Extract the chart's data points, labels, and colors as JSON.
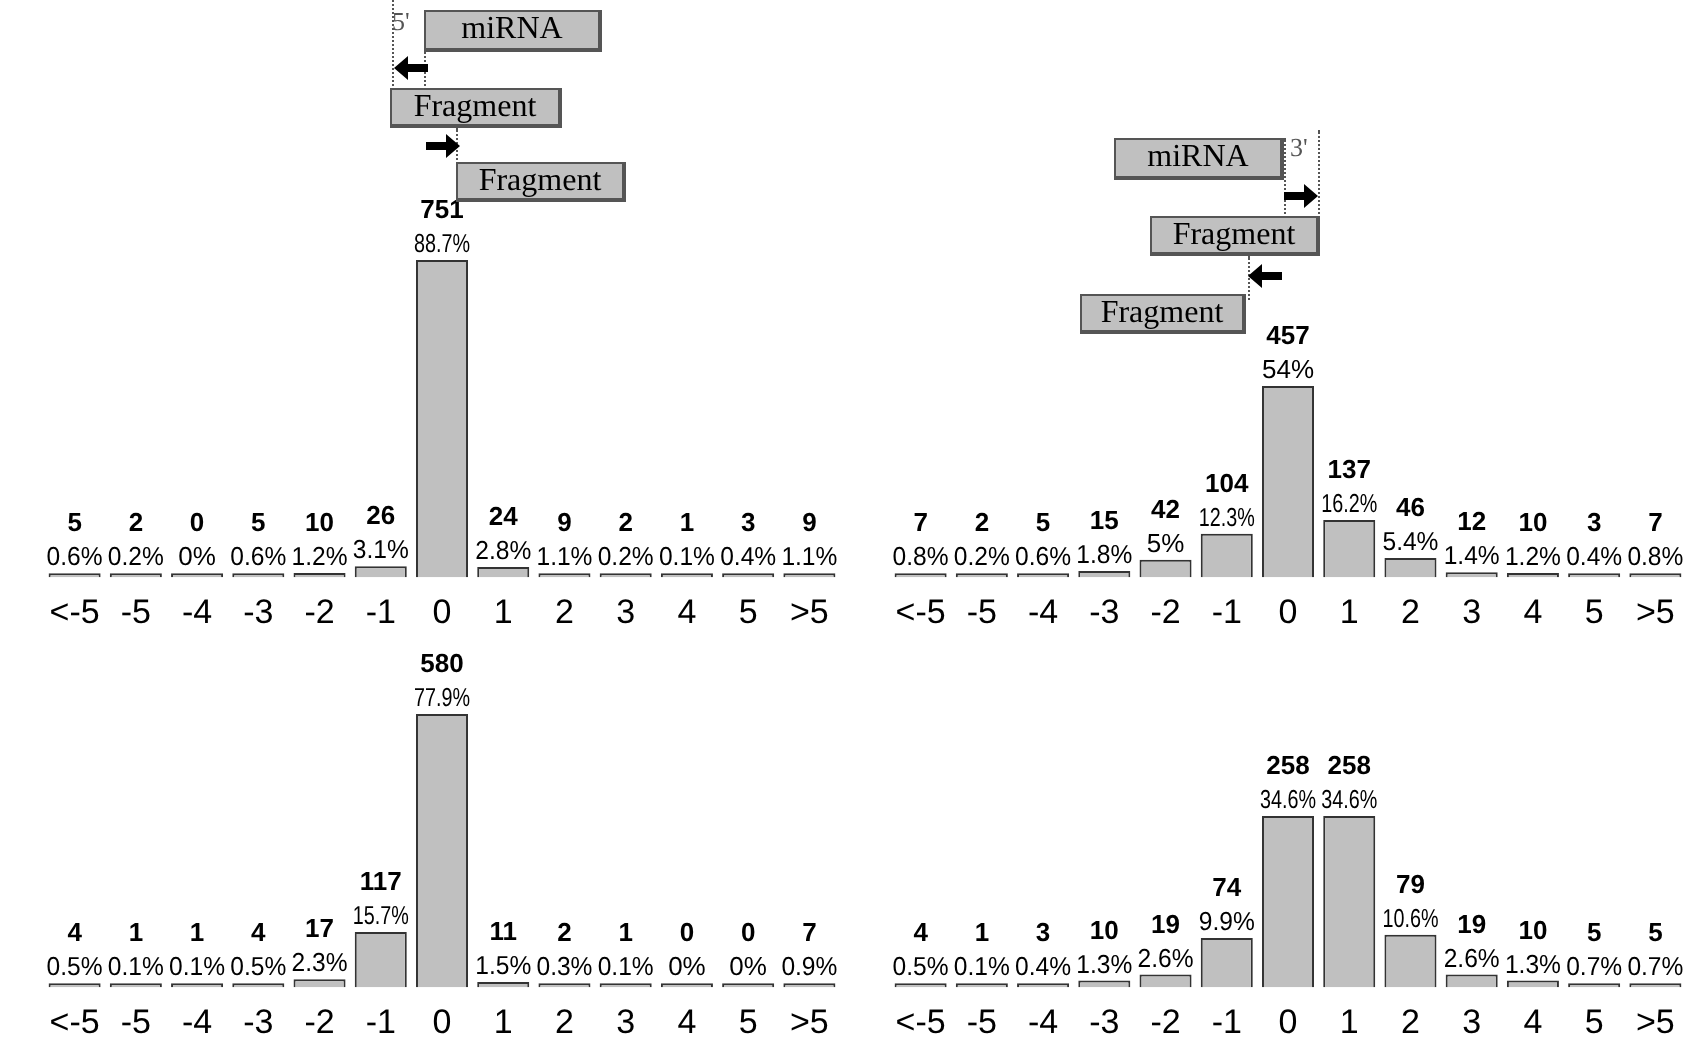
{
  "chart_data": [
    {
      "type": "bar",
      "categories": [
        "<-5",
        "-5",
        "-4",
        "-3",
        "-2",
        "-1",
        "0",
        "1",
        "2",
        "3",
        "4",
        "5",
        ">5"
      ],
      "color": "#c0c0c0",
      "tick_labels": "x",
      "grid": false,
      "legend": false,
      "values": [
        5,
        2,
        0,
        5,
        10,
        26,
        751,
        24,
        9,
        2,
        1,
        3,
        9
      ],
      "value_labels": [
        "5\n0.6%",
        "2\n0.2%",
        "0\n0%",
        "5\n0.6%",
        "10\n1.2%",
        "26\n3.1%",
        "751\n88.7%",
        "24\n2.8%",
        "9\n1.1%",
        "2\n0.2%",
        "1\n0.1%",
        "3\n0.4%",
        "9\n1.1%"
      ],
      "annotations": [
        "5'",
        "miRNA",
        "Fragment",
        "Fragment"
      ]
    },
    {
      "type": "bar",
      "categories": [
        "<-5",
        "-5",
        "-4",
        "-3",
        "-2",
        "-1",
        "0",
        "1",
        "2",
        "3",
        "4",
        "5",
        ">5"
      ],
      "color": "#c0c0c0",
      "tick_labels": "x",
      "grid": false,
      "legend": false,
      "values": [
        7,
        2,
        5,
        15,
        42,
        104,
        457,
        137,
        46,
        12,
        10,
        3,
        7
      ],
      "value_labels": [
        "7\n0.8%",
        "2\n0.2%",
        "5\n0.6%",
        "15\n1.8%",
        "42\n5%",
        "104\n12.3%",
        "457\n54%",
        "137\n16.2%",
        "46\n5.4%",
        "12\n1.4%",
        "10\n1.2%",
        "3\n0.4%",
        "7\n0.8%"
      ],
      "annotations": [
        "miRNA",
        "3'",
        "Fragment",
        "Fragment"
      ]
    },
    {
      "type": "bar",
      "categories": [
        "<-5",
        "-5",
        "-4",
        "-3",
        "-2",
        "-1",
        "0",
        "1",
        "2",
        "3",
        "4",
        "5",
        ">5"
      ],
      "color": "#c0c0c0",
      "tick_labels": "x",
      "grid": false,
      "legend": false,
      "values": [
        4,
        1,
        1,
        4,
        17,
        117,
        580,
        11,
        2,
        1,
        0,
        0,
        7
      ],
      "value_labels": [
        "4\n0.5%",
        "1\n0.1%",
        "1\n0.1%",
        "4\n0.5%",
        "17\n2.3%",
        "117\n15.7%",
        "580\n77.9%",
        "11\n1.5%",
        "2\n0.3%",
        "1\n0.1%",
        "0\n0%",
        "0\n0%",
        "7\n0.9%"
      ]
    },
    {
      "type": "bar",
      "categories": [
        "<-5",
        "-5",
        "-4",
        "-3",
        "-2",
        "-1",
        "0",
        "1",
        "2",
        "3",
        "4",
        "5",
        ">5"
      ],
      "color": "#c0c0c0",
      "tick_labels": "x",
      "grid": false,
      "legend": false,
      "values": [
        4,
        1,
        3,
        10,
        19,
        74,
        258,
        258,
        79,
        19,
        10,
        5,
        5
      ],
      "value_labels": [
        "4\n0.5%",
        "1\n0.1%",
        "3\n0.4%",
        "10\n1.3%",
        "19\n2.6%",
        "74\n9.9%",
        "258\n34.6%",
        "258\n34.6%",
        "79\n10.6%",
        "19\n2.6%",
        "10\n1.3%",
        "5\n0.7%",
        "5\n0.7%"
      ]
    }
  ]
}
